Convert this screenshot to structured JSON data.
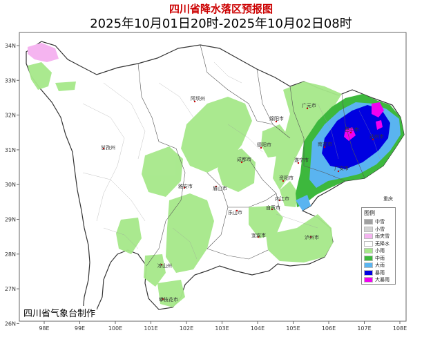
{
  "title": "四川省降水落区预报图",
  "subtitle": "2025年10月01日20时-2025年10月02日08时",
  "credit": "四川省气象台制作",
  "legend": {
    "title": "图例",
    "items": [
      {
        "label": "中雪",
        "color": "#a0a0a0"
      },
      {
        "label": "小雪",
        "color": "#d2d2d2"
      },
      {
        "label": "雨夹雪",
        "color": "#f5b4f0"
      },
      {
        "label": "无降水",
        "color": "#ffffff"
      },
      {
        "label": "小雨",
        "color": "#a6e88a"
      },
      {
        "label": "中雨",
        "color": "#3db83d"
      },
      {
        "label": "大雨",
        "color": "#5ab4f0"
      },
      {
        "label": "暴雨",
        "color": "#0000e0"
      },
      {
        "label": "大暴雨",
        "color": "#f000f0"
      }
    ]
  },
  "axes": {
    "lon_labels": [
      "98E",
      "99E",
      "100E",
      "101E",
      "102E",
      "103E",
      "104E",
      "105E",
      "106E",
      "107E",
      "108E"
    ],
    "lat_labels": [
      "34N",
      "33N",
      "32N",
      "31N",
      "30N",
      "29N",
      "28N",
      "27N",
      "26N"
    ]
  },
  "cities": [
    "阿坝州",
    "绵阳市",
    "广元市",
    "巴中市",
    "达州市",
    "南充市",
    "德阳市",
    "甘孜州",
    "成都市",
    "遂宁市",
    "广安市",
    "雅安市",
    "眉山市",
    "资阳市",
    "乐山市",
    "内江市",
    "自贡市",
    "宜宾市",
    "泸州市",
    "凉山州",
    "攀枝花市",
    "重庆"
  ]
}
